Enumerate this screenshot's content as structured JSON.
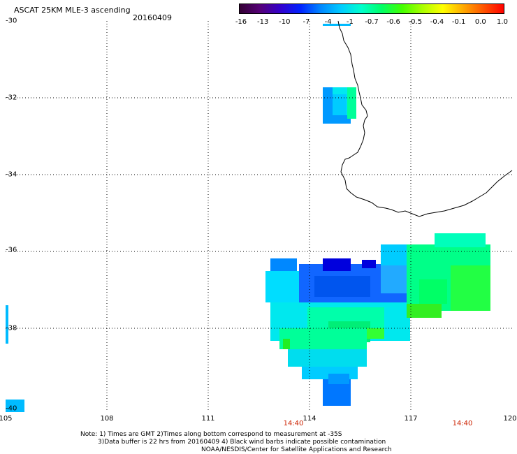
{
  "header": {
    "title": "ASCAT 25KM MLE-3 ascending",
    "date": "20160409"
  },
  "colorbar": {
    "ticks": [
      "-16",
      "-13",
      "-10",
      "-7",
      "-4",
      "-1",
      "-0.7",
      "-0.6",
      "-0.5",
      "-0.4",
      "-0.1",
      "0.0",
      "1.0"
    ],
    "colors": [
      "#330033",
      "#550077",
      "#3300cc",
      "#0022ff",
      "#0088ff",
      "#00ccff",
      "#00ffcc",
      "#00ff66",
      "#44ff00",
      "#aaff00",
      "#ffff00",
      "#ffaa00",
      "#ff5500",
      "#ff0000"
    ]
  },
  "map": {
    "lat_labels": [
      "-30",
      "-32",
      "-34",
      "-36",
      "-38",
      "-40"
    ],
    "lon_labels": [
      "105",
      "108",
      "111",
      "114",
      "117",
      "120"
    ],
    "time_labels": [
      "14:40",
      "14:40"
    ],
    "coastline_color": "#000000",
    "grid": "dotted"
  },
  "notes": {
    "line1": "Note: 1) Times are GMT 2)Times along bottom correspond to measurement at -35S",
    "line2": "3)Data buffer is 22 hrs from 20160409 4) Black wind barbs indicate possible contamination",
    "line3": "NOAA/NESDIS/Center for Satellite Applications and Research"
  }
}
